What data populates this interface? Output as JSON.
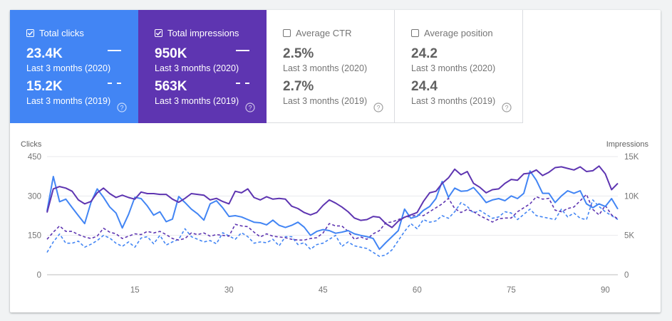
{
  "cards": [
    {
      "label": "Total clicks",
      "checked": true,
      "value_current": "23.4K",
      "period_current": "Last 3 months (2020)",
      "value_previous": "15.2K",
      "period_previous": "Last 3 months (2019)"
    },
    {
      "label": "Total impressions",
      "checked": true,
      "value_current": "950K",
      "period_current": "Last 3 months (2020)",
      "value_previous": "563K",
      "period_previous": "Last 3 months (2019)"
    },
    {
      "label": "Average CTR",
      "checked": false,
      "value_current": "2.5%",
      "period_current": "Last 3 months (2020)",
      "value_previous": "2.7%",
      "period_previous": "Last 3 months (2019)"
    },
    {
      "label": "Average position",
      "checked": false,
      "value_current": "24.2",
      "period_current": "Last 3 months (2020)",
      "value_previous": "24.4",
      "period_previous": "Last 3 months (2019)"
    }
  ],
  "colors": {
    "clicks": "#4285f4",
    "impressions": "#5e35b1"
  },
  "chart_data": {
    "type": "line",
    "ylabel_left": "Clicks",
    "ylabel_right": "Impressions",
    "yticks_left": [
      "0",
      "150",
      "300",
      "450"
    ],
    "yticks_right": [
      "0",
      "5K",
      "10K",
      "15K"
    ],
    "ylim_left": [
      0,
      450
    ],
    "ylim_right": [
      0,
      15000
    ],
    "xticks": [
      "15",
      "30",
      "45",
      "60",
      "75",
      "90"
    ],
    "xtick_values": [
      15,
      30,
      45,
      60,
      75,
      90
    ],
    "xlim": [
      1,
      92
    ],
    "series": [
      {
        "axis": "left",
        "style": "solid",
        "color": "#4285f4",
        "values": [
          242,
          374,
          278,
          288,
          256,
          225,
          195,
          275,
          327,
          295,
          258,
          235,
          178,
          230,
          295,
          290,
          262,
          227,
          240,
          202,
          212,
          298,
          275,
          250,
          232,
          208,
          270,
          282,
          255,
          222,
          225,
          220,
          210,
          200,
          198,
          190,
          208,
          188,
          180,
          188,
          200,
          181,
          150,
          165,
          172,
          168,
          158,
          162,
          168,
          156,
          150,
          145,
          138,
          97,
          122,
          145,
          168,
          250,
          215,
          222,
          245,
          260,
          290,
          355,
          295,
          330,
          318,
          320,
          332,
          305,
          275,
          285,
          290,
          282,
          300,
          290,
          310,
          395,
          360,
          310,
          310,
          275,
          300,
          320,
          310,
          320,
          270,
          255,
          270,
          260,
          290,
          250
        ]
      },
      {
        "axis": "left",
        "style": "dashed",
        "color": "#4285f4",
        "values": [
          85,
          125,
          155,
          120,
          120,
          128,
          105,
          116,
          130,
          150,
          140,
          120,
          108,
          125,
          105,
          140,
          145,
          118,
          150,
          113,
          125,
          135,
          175,
          145,
          135,
          125,
          130,
          118,
          160,
          148,
          135,
          160,
          145,
          120,
          125,
          122,
          135,
          110,
          145,
          145,
          115,
          122,
          97,
          115,
          120,
          135,
          150,
          108,
          125,
          110,
          105,
          100,
          85,
          70,
          75,
          95,
          130,
          165,
          195,
          175,
          210,
          200,
          205,
          225,
          215,
          240,
          275,
          260,
          235,
          245,
          230,
          215,
          220,
          240,
          235,
          210,
          230,
          250,
          225,
          220,
          215,
          210,
          250,
          220,
          235,
          215,
          210,
          285,
          260,
          240,
          225,
          210
        ]
      },
      {
        "axis": "right",
        "style": "solid",
        "color": "#5e35b1",
        "values": [
          7900,
          10900,
          11200,
          11000,
          10600,
          9500,
          9000,
          9300,
          10400,
          11000,
          10300,
          9800,
          10100,
          9800,
          9600,
          10500,
          10300,
          10300,
          10200,
          10200,
          9600,
          9200,
          9700,
          10300,
          10200,
          10100,
          9500,
          9700,
          9300,
          9000,
          10600,
          10400,
          10900,
          9800,
          9500,
          9900,
          9600,
          9700,
          9600,
          8700,
          8400,
          7900,
          7600,
          7900,
          8800,
          9500,
          9100,
          8600,
          8000,
          7200,
          6900,
          7000,
          7400,
          7300,
          6500,
          6000,
          6800,
          7300,
          7600,
          7900,
          9300,
          10400,
          10600,
          11600,
          12300,
          13400,
          12700,
          13100,
          11600,
          11100,
          10400,
          10800,
          10900,
          11600,
          12100,
          12000,
          12800,
          12900,
          13300,
          12600,
          13000,
          13600,
          13700,
          13500,
          13300,
          13700,
          13100,
          13200,
          13800,
          12800,
          10800,
          11600
        ]
      },
      {
        "axis": "right",
        "style": "dashed",
        "color": "#5e35b1",
        "values": [
          4500,
          5400,
          6200,
          5500,
          5500,
          5100,
          4800,
          4600,
          4900,
          5900,
          5400,
          5200,
          4600,
          4900,
          5200,
          5100,
          5500,
          5300,
          5500,
          5100,
          4600,
          4400,
          4600,
          5300,
          5100,
          5300,
          4900,
          5100,
          5000,
          4900,
          6400,
          6200,
          6100,
          5400,
          4800,
          5200,
          4900,
          4800,
          4700,
          4500,
          4400,
          4400,
          4600,
          4700,
          5300,
          6500,
          6200,
          6200,
          5500,
          4500,
          4800,
          4500,
          5200,
          5600,
          6600,
          6700,
          7000,
          7300,
          7400,
          7600,
          7500,
          8000,
          8500,
          9000,
          9700,
          8400,
          7900,
          8300,
          8000,
          7500,
          7100,
          6700,
          7100,
          7200,
          7200,
          8000,
          8500,
          9000,
          9900,
          9600,
          9700,
          8200,
          8000,
          8400,
          8600,
          9400,
          10200,
          8300,
          7600,
          8800,
          7600,
          7100
        ]
      }
    ]
  }
}
